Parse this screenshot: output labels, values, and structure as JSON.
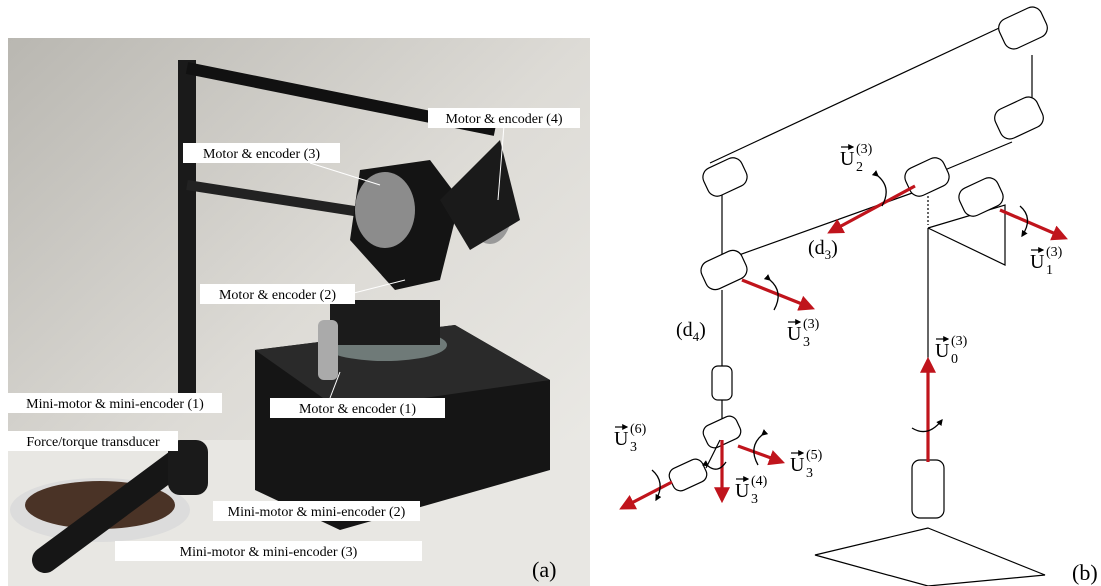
{
  "photo_labels": [
    "Motor & encoder (4)",
    "Motor & encoder (3)",
    "Motor & encoder (2)",
    "Motor & encoder (1)",
    "Mini-motor & mini-encoder (1)",
    "Force/torque transducer",
    "Mini-motor & mini-encoder (2)",
    "Mini-motor & mini-encoder (3)"
  ],
  "diagram_labels": [
    {
      "base": "U",
      "sub": "2",
      "sup": "(3)"
    },
    {
      "base": "U",
      "sub": "1",
      "sup": "(3)"
    },
    {
      "base": "U",
      "sub": "3",
      "sup": "(3)"
    },
    {
      "base": "U",
      "sub": "0",
      "sup": "(3)"
    },
    {
      "base": "U",
      "sub": "3",
      "sup": "(6)"
    },
    {
      "base": "U",
      "sub": "3",
      "sup": "(5)"
    },
    {
      "base": "U",
      "sub": "3",
      "sup": "(4)"
    }
  ],
  "lengths": [
    {
      "open": "(",
      "base": "d",
      "sub": "3",
      "close": ")"
    },
    {
      "open": "(",
      "base": "d",
      "sub": "4",
      "close": ")"
    }
  ],
  "panel_labels": [
    "(a)",
    "(b)"
  ]
}
